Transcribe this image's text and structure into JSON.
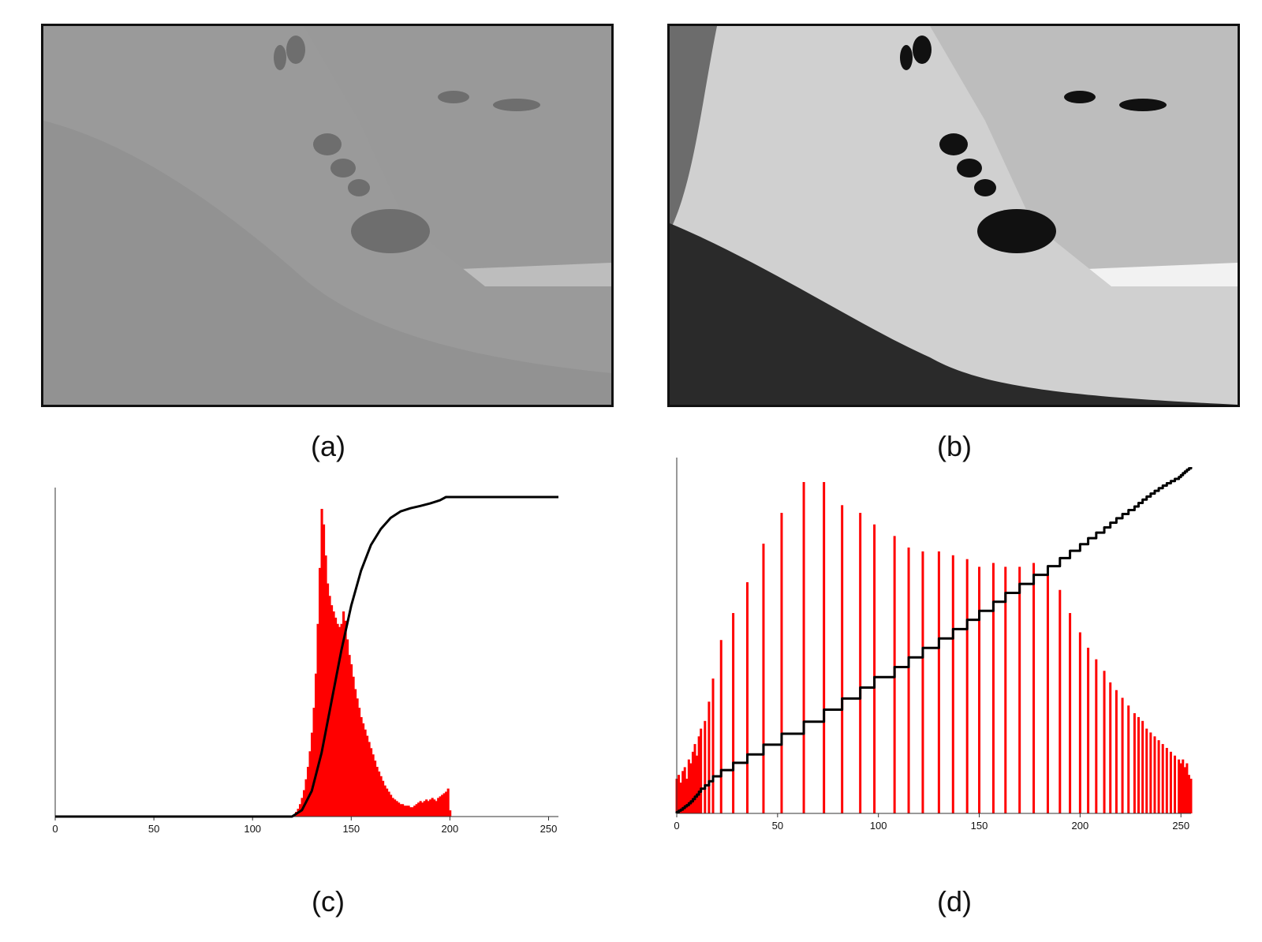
{
  "captions": {
    "a": "(a)",
    "b": "(b)",
    "c": "(c)",
    "d": "(d)"
  },
  "images": {
    "a": {
      "description_tone": "low-contrast",
      "colors": {
        "sky": "#bdbdbd",
        "hill": "#9a9a9a",
        "shade": "#8a8a8a",
        "trees": "#6e6e6e"
      }
    },
    "b": {
      "description_tone": "high-contrast",
      "colors": {
        "sky": "#f2f2f2",
        "hill": "#d0d0d0",
        "shade": "#2a2a2a",
        "trees": "#111111"
      }
    }
  },
  "chart_data": [
    {
      "id": "c",
      "type": "bar",
      "xlim": [
        0,
        255
      ],
      "xticks": [
        0,
        50,
        100,
        150,
        200,
        250
      ],
      "colors": {
        "bars": "#ff0000",
        "cdf": "#000000"
      },
      "histogram": {
        "bins": [
          121,
          122,
          123,
          124,
          125,
          126,
          127,
          128,
          129,
          130,
          131,
          132,
          133,
          134,
          135,
          136,
          137,
          138,
          139,
          140,
          141,
          142,
          143,
          144,
          145,
          146,
          147,
          148,
          149,
          150,
          151,
          152,
          153,
          154,
          155,
          156,
          157,
          158,
          159,
          160,
          161,
          162,
          163,
          164,
          165,
          166,
          167,
          168,
          169,
          170,
          171,
          172,
          173,
          174,
          175,
          176,
          177,
          178,
          179,
          180,
          181,
          182,
          183,
          184,
          185,
          186,
          187,
          188,
          189,
          190,
          191,
          192,
          193,
          194,
          195,
          196,
          197,
          198,
          199,
          200
        ],
        "counts": [
          0.5,
          1.5,
          2.5,
          4,
          6,
          8.5,
          12,
          16,
          21,
          27,
          35,
          46,
          62,
          80,
          99,
          94,
          84,
          75,
          71,
          68,
          66,
          64,
          62,
          61,
          62,
          66,
          63,
          57,
          52,
          49,
          45,
          41,
          38,
          35,
          32,
          30,
          28,
          26,
          24,
          22,
          20,
          18,
          16,
          14.5,
          13,
          11.5,
          10,
          9,
          8,
          7,
          6,
          5.5,
          5,
          4.5,
          4,
          4,
          3.5,
          3.5,
          3.5,
          3,
          3,
          3.5,
          4,
          4.5,
          5,
          4.5,
          5,
          5.5,
          5,
          5.5,
          6,
          5.5,
          5,
          6,
          6.5,
          7,
          7.5,
          8,
          9,
          2
        ]
      },
      "cdf": {
        "x": [
          0,
          110,
          120,
          125,
          130,
          135,
          140,
          145,
          150,
          155,
          160,
          165,
          170,
          175,
          180,
          185,
          190,
          195,
          198,
          200,
          255
        ],
        "y": [
          0,
          0,
          0,
          0.02,
          0.08,
          0.2,
          0.36,
          0.52,
          0.66,
          0.77,
          0.85,
          0.9,
          0.935,
          0.955,
          0.965,
          0.972,
          0.98,
          0.99,
          1,
          1,
          1
        ]
      }
    },
    {
      "id": "d",
      "type": "bar",
      "xlim": [
        0,
        255
      ],
      "xticks": [
        0,
        50,
        100,
        150,
        200,
        250
      ],
      "colors": {
        "bars": "#ff0000",
        "cdf": "#000000"
      },
      "histogram": {
        "bins": [
          0,
          1,
          2,
          3,
          4,
          5,
          6,
          7,
          8,
          9,
          10,
          11,
          12,
          14,
          16,
          18,
          22,
          28,
          35,
          43,
          52,
          63,
          73,
          82,
          91,
          98,
          108,
          115,
          122,
          130,
          137,
          144,
          150,
          157,
          163,
          170,
          177,
          184,
          190,
          195,
          200,
          204,
          208,
          212,
          215,
          218,
          221,
          224,
          227,
          229,
          231,
          233,
          235,
          237,
          239,
          241,
          243,
          245,
          247,
          249,
          250,
          251,
          252,
          253,
          254,
          255
        ],
        "counts": [
          9,
          10,
          8,
          11,
          12,
          9,
          14,
          13,
          16,
          18,
          15,
          20,
          22,
          24,
          29,
          35,
          45,
          52,
          60,
          70,
          78,
          86,
          86,
          80,
          78,
          75,
          72,
          69,
          68,
          68,
          67,
          66,
          64,
          65,
          64,
          64,
          65,
          62,
          58,
          52,
          47,
          43,
          40,
          37,
          34,
          32,
          30,
          28,
          26,
          25,
          24,
          22,
          21,
          20,
          19,
          18,
          17,
          16,
          15,
          14,
          13,
          14,
          12,
          13,
          10,
          9
        ]
      },
      "cdf": {
        "x": [
          0,
          255
        ],
        "y": [
          0,
          1
        ]
      }
    }
  ]
}
